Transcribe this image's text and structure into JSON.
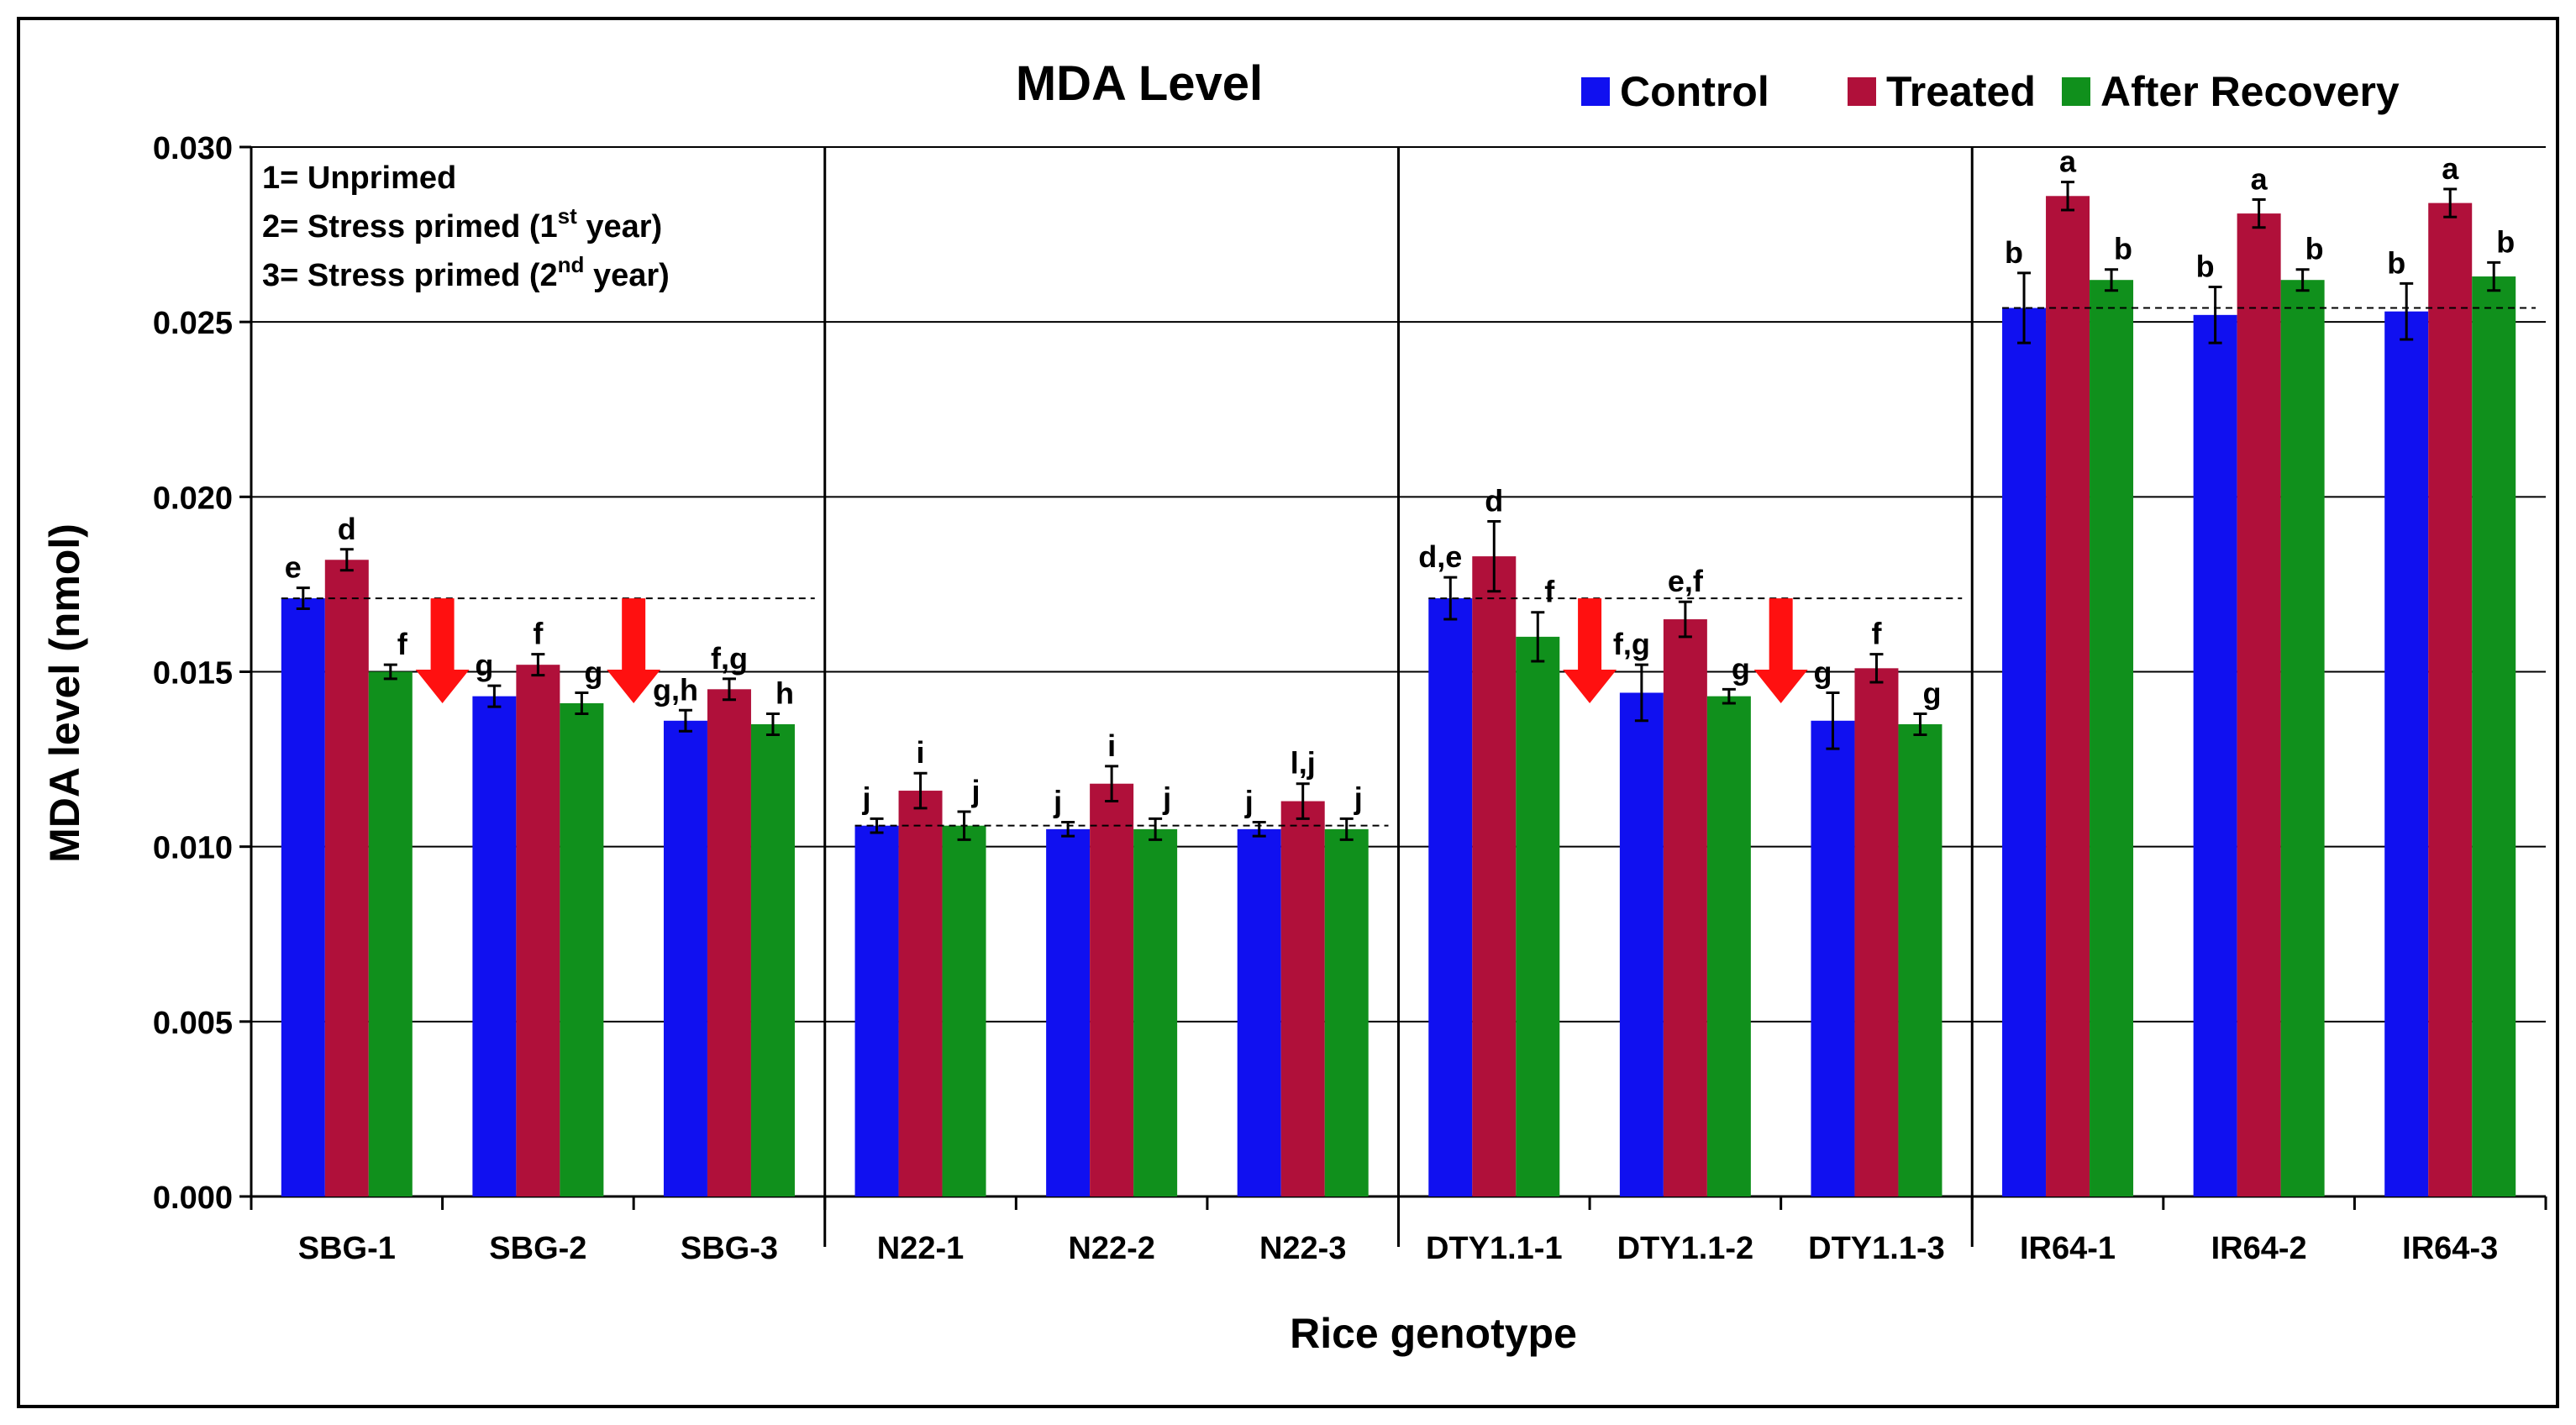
{
  "chart_data": {
    "type": "bar",
    "title": "MDA Level",
    "xlabel": "Rice genotype",
    "ylabel": "MDA level (nmol)",
    "ylim": [
      0,
      0.03
    ],
    "yticks": [
      "0.000",
      "0.005",
      "0.010",
      "0.015",
      "0.020",
      "0.025",
      "0.030"
    ],
    "legend_position": "top-right",
    "categories": [
      "SBG-1",
      "SBG-2",
      "SBG-3",
      "N22-1",
      "N22-2",
      "N22-3",
      "DTY1.1-1",
      "DTY1.1-2",
      "DTY1.1-3",
      "IR64-1",
      "IR64-2",
      "IR64-3"
    ],
    "series": [
      {
        "name": "Control",
        "color": "#1010f0",
        "values": [
          0.0171,
          0.0143,
          0.0136,
          0.0106,
          0.0105,
          0.0105,
          0.0171,
          0.0144,
          0.0136,
          0.0254,
          0.0252,
          0.0253
        ],
        "errors": [
          0.0003,
          0.0003,
          0.0003,
          0.0002,
          0.0002,
          0.0002,
          0.0006,
          0.0008,
          0.0008,
          0.001,
          0.0008,
          0.0008
        ],
        "letters": [
          "e",
          "g",
          "g,h",
          "j",
          "j",
          "j",
          "d,e",
          "f,g",
          "g",
          "b",
          "b",
          "b"
        ]
      },
      {
        "name": "Treated",
        "color": "#b0103a",
        "values": [
          0.0182,
          0.0152,
          0.0145,
          0.0116,
          0.0118,
          0.0113,
          0.0183,
          0.0165,
          0.0151,
          0.0286,
          0.0281,
          0.0284
        ],
        "errors": [
          0.0003,
          0.0003,
          0.0003,
          0.0005,
          0.0005,
          0.0005,
          0.001,
          0.0005,
          0.0004,
          0.0004,
          0.0004,
          0.0004
        ],
        "letters": [
          "d",
          "f",
          "f,g",
          "i",
          "i",
          "l,j",
          "d",
          "e,f",
          "f",
          "a",
          "a",
          "a"
        ]
      },
      {
        "name": "After Recovery",
        "color": "#10901c",
        "values": [
          0.015,
          0.0141,
          0.0135,
          0.0106,
          0.0105,
          0.0105,
          0.016,
          0.0143,
          0.0135,
          0.0262,
          0.0262,
          0.0263
        ],
        "errors": [
          0.0002,
          0.0003,
          0.0003,
          0.0004,
          0.0003,
          0.0003,
          0.0007,
          0.0002,
          0.0003,
          0.0003,
          0.0003,
          0.0004
        ],
        "letters": [
          "f",
          "g",
          "h",
          "j",
          "j",
          "j",
          "f",
          "g",
          "g",
          "b",
          "b",
          "b"
        ]
      }
    ],
    "reference_lines": [
      {
        "group": "SBG",
        "value": 0.0171
      },
      {
        "group": "N22",
        "value": 0.0106
      },
      {
        "group": "DTY1.1",
        "value": 0.0171
      },
      {
        "group": "IR64",
        "value": 0.0254
      }
    ],
    "arrows": [
      {
        "after": "SBG-1"
      },
      {
        "after": "SBG-2"
      },
      {
        "after": "DTY1.1-1"
      },
      {
        "after": "DTY1.1-2"
      }
    ],
    "annotation": {
      "line1": "1= Unprimed",
      "line2_main": "2= Stress primed (1",
      "line2_sup": "st",
      "line2_end": " year)",
      "line3_main": "3= Stress primed (2",
      "line3_sup": "nd",
      "line3_end": " year)"
    }
  }
}
